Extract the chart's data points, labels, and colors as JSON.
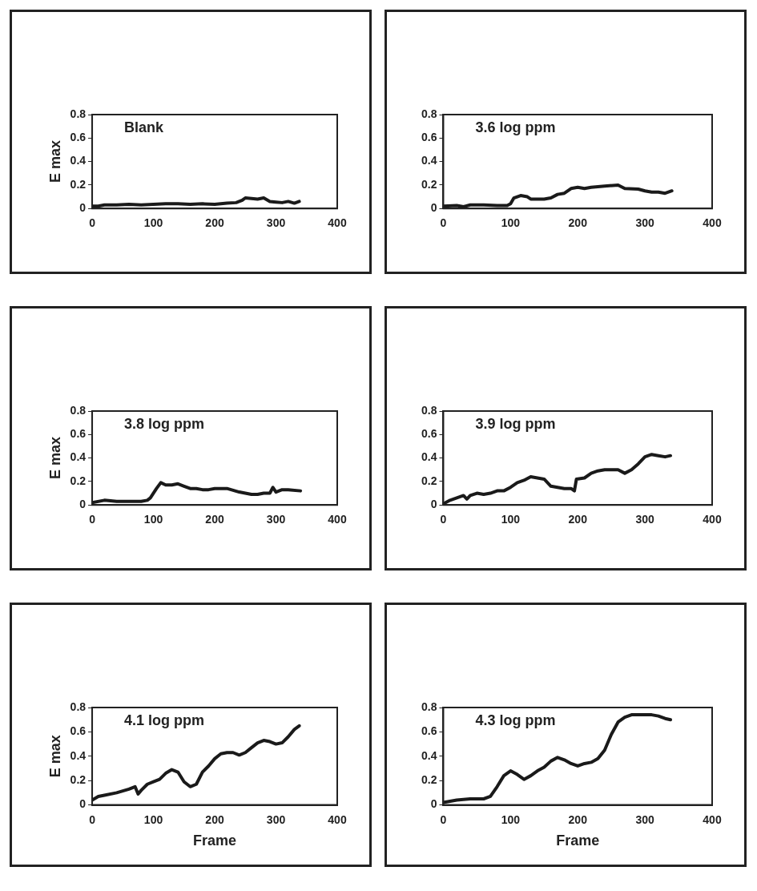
{
  "chart_data": [
    {
      "type": "line",
      "title": "Blank",
      "ylabel": "E max",
      "color": "#1a1a1a",
      "marker": "none",
      "xlim": [
        0,
        400
      ],
      "xticks": [
        0,
        100,
        200,
        300,
        400
      ],
      "ylim": [
        0,
        0.8
      ],
      "yticks": [
        0,
        0.2,
        0.4,
        0.6,
        0.8
      ],
      "grid": false,
      "legend": false,
      "x": [
        0,
        10,
        20,
        40,
        60,
        80,
        100,
        120,
        140,
        160,
        180,
        200,
        220,
        235,
        245,
        250,
        260,
        270,
        280,
        290,
        300,
        310,
        320,
        330,
        338
      ],
      "values": [
        0.02,
        0.02,
        0.03,
        0.03,
        0.035,
        0.03,
        0.035,
        0.04,
        0.04,
        0.035,
        0.04,
        0.035,
        0.045,
        0.05,
        0.07,
        0.09,
        0.085,
        0.08,
        0.09,
        0.06,
        0.055,
        0.05,
        0.06,
        0.045,
        0.06
      ]
    },
    {
      "type": "line",
      "title": "3.6 log ppm",
      "color": "#1a1a1a",
      "marker": "none",
      "xlim": [
        0,
        400
      ],
      "xticks": [
        0,
        100,
        200,
        300,
        400
      ],
      "ylim": [
        0,
        0.8
      ],
      "yticks": [
        0,
        0.2,
        0.4,
        0.6,
        0.8
      ],
      "grid": false,
      "legend": false,
      "x": [
        0,
        20,
        30,
        40,
        60,
        80,
        95,
        100,
        105,
        115,
        125,
        130,
        150,
        160,
        170,
        180,
        190,
        200,
        210,
        220,
        240,
        260,
        270,
        290,
        300,
        310,
        320,
        330,
        340
      ],
      "values": [
        0.02,
        0.025,
        0.015,
        0.03,
        0.03,
        0.025,
        0.025,
        0.04,
        0.09,
        0.11,
        0.1,
        0.08,
        0.08,
        0.09,
        0.12,
        0.13,
        0.17,
        0.18,
        0.17,
        0.18,
        0.19,
        0.2,
        0.17,
        0.165,
        0.15,
        0.14,
        0.14,
        0.13,
        0.15
      ]
    },
    {
      "type": "line",
      "title": "3.8 log ppm",
      "ylabel": "E max",
      "color": "#1a1a1a",
      "marker": "none",
      "xlim": [
        0,
        400
      ],
      "xticks": [
        0,
        100,
        200,
        300,
        400
      ],
      "ylim": [
        0,
        0.8
      ],
      "yticks": [
        0,
        0.2,
        0.4,
        0.6,
        0.8
      ],
      "grid": false,
      "legend": false,
      "x": [
        0,
        20,
        40,
        60,
        80,
        90,
        95,
        105,
        112,
        120,
        130,
        140,
        150,
        160,
        170,
        180,
        190,
        200,
        210,
        220,
        240,
        250,
        260,
        270,
        280,
        290,
        295,
        300,
        310,
        320,
        340
      ],
      "values": [
        0.02,
        0.04,
        0.03,
        0.03,
        0.03,
        0.04,
        0.06,
        0.14,
        0.19,
        0.17,
        0.17,
        0.18,
        0.16,
        0.14,
        0.14,
        0.13,
        0.13,
        0.14,
        0.14,
        0.14,
        0.11,
        0.1,
        0.09,
        0.09,
        0.1,
        0.1,
        0.15,
        0.11,
        0.13,
        0.13,
        0.12
      ]
    },
    {
      "type": "line",
      "title": "3.9 log ppm",
      "color": "#1a1a1a",
      "marker": "none",
      "xlim": [
        0,
        400
      ],
      "xticks": [
        0,
        100,
        200,
        300,
        400
      ],
      "ylim": [
        0,
        0.8
      ],
      "yticks": [
        0,
        0.2,
        0.4,
        0.6,
        0.8
      ],
      "grid": false,
      "legend": false,
      "x": [
        0,
        10,
        20,
        30,
        35,
        40,
        50,
        60,
        70,
        80,
        90,
        100,
        110,
        120,
        130,
        140,
        150,
        160,
        170,
        180,
        190,
        195,
        198,
        210,
        220,
        230,
        240,
        250,
        260,
        270,
        280,
        290,
        300,
        310,
        320,
        330,
        338
      ],
      "values": [
        0.01,
        0.04,
        0.06,
        0.08,
        0.05,
        0.08,
        0.1,
        0.09,
        0.1,
        0.12,
        0.12,
        0.15,
        0.19,
        0.21,
        0.24,
        0.23,
        0.22,
        0.16,
        0.15,
        0.14,
        0.14,
        0.12,
        0.22,
        0.23,
        0.27,
        0.29,
        0.3,
        0.3,
        0.3,
        0.27,
        0.3,
        0.35,
        0.41,
        0.43,
        0.42,
        0.41,
        0.42
      ]
    },
    {
      "type": "line",
      "title": "4.1 log ppm",
      "ylabel": "E max",
      "xlabel": "Frame",
      "color": "#1a1a1a",
      "marker": "none",
      "xlim": [
        0,
        400
      ],
      "xticks": [
        0,
        100,
        200,
        300,
        400
      ],
      "ylim": [
        0,
        0.8
      ],
      "yticks": [
        0,
        0.2,
        0.4,
        0.6,
        0.8
      ],
      "grid": false,
      "legend": false,
      "x": [
        0,
        10,
        20,
        40,
        60,
        70,
        75,
        80,
        90,
        100,
        110,
        120,
        130,
        140,
        150,
        160,
        170,
        180,
        190,
        200,
        210,
        220,
        230,
        240,
        250,
        260,
        270,
        280,
        290,
        300,
        310,
        320,
        330,
        338
      ],
      "values": [
        0.04,
        0.07,
        0.08,
        0.1,
        0.13,
        0.15,
        0.09,
        0.12,
        0.17,
        0.19,
        0.21,
        0.26,
        0.29,
        0.27,
        0.19,
        0.15,
        0.17,
        0.27,
        0.32,
        0.38,
        0.42,
        0.43,
        0.43,
        0.41,
        0.43,
        0.47,
        0.51,
        0.53,
        0.52,
        0.5,
        0.51,
        0.56,
        0.62,
        0.65
      ]
    },
    {
      "type": "line",
      "title": "4.3 log ppm",
      "xlabel": "Frame",
      "color": "#1a1a1a",
      "marker": "none",
      "xlim": [
        0,
        400
      ],
      "xticks": [
        0,
        100,
        200,
        300,
        400
      ],
      "ylim": [
        0,
        0.8
      ],
      "yticks": [
        0,
        0.2,
        0.4,
        0.6,
        0.8
      ],
      "grid": false,
      "legend": false,
      "x": [
        0,
        10,
        20,
        40,
        60,
        70,
        80,
        90,
        100,
        110,
        120,
        130,
        140,
        150,
        160,
        170,
        180,
        190,
        200,
        210,
        220,
        230,
        240,
        250,
        260,
        270,
        280,
        290,
        300,
        310,
        320,
        330,
        338
      ],
      "values": [
        0.02,
        0.03,
        0.04,
        0.05,
        0.05,
        0.07,
        0.15,
        0.24,
        0.28,
        0.25,
        0.21,
        0.24,
        0.28,
        0.31,
        0.36,
        0.39,
        0.37,
        0.34,
        0.32,
        0.34,
        0.35,
        0.38,
        0.45,
        0.58,
        0.68,
        0.72,
        0.74,
        0.74,
        0.74,
        0.74,
        0.73,
        0.71,
        0.7
      ]
    }
  ]
}
